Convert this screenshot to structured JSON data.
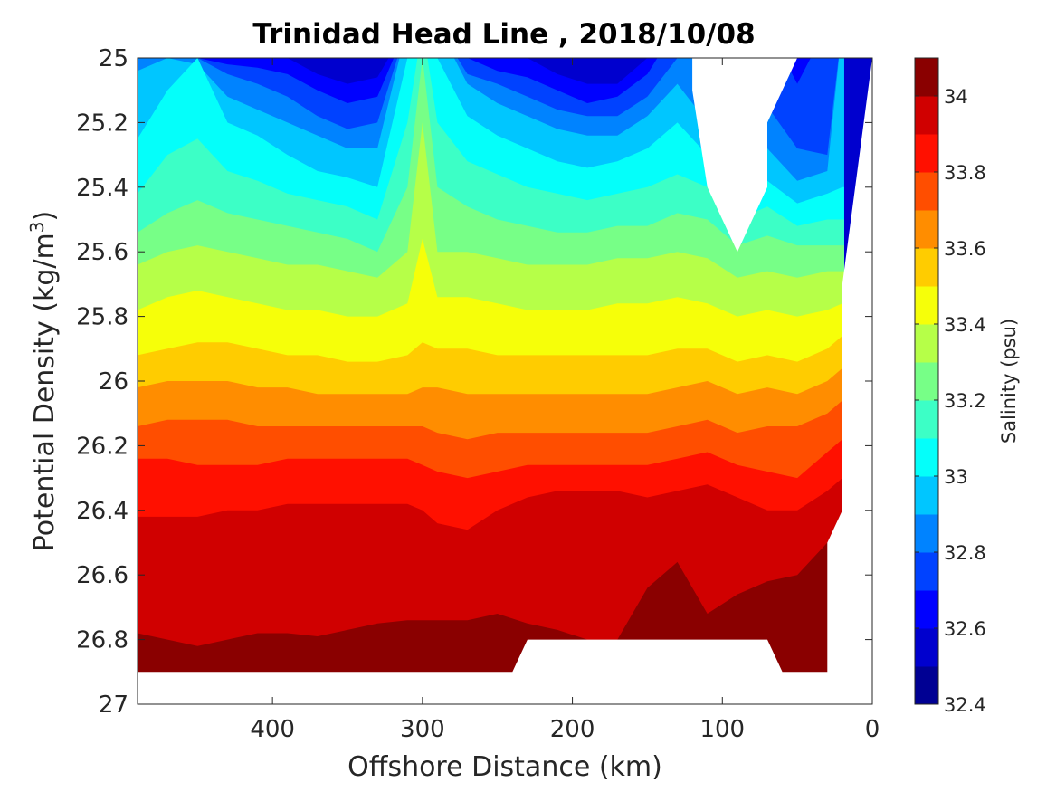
{
  "chart_data": {
    "type": "heatmap",
    "subtype": "filled-contour",
    "title": "Trinidad Head Line , 2018/10/08",
    "xlabel": "Offshore Distance (km)",
    "ylabel_prefix": "Potential Density (kg/m",
    "ylabel_superscript": "3",
    "ylabel_suffix": ")",
    "xlim": [
      490,
      0
    ],
    "x_reversed": true,
    "ylim": [
      25,
      27
    ],
    "y_reversed": true,
    "x_ticks": [
      400,
      300,
      200,
      100,
      0
    ],
    "x_tick_labels": [
      "400",
      "300",
      "200",
      "100",
      "0"
    ],
    "y_ticks": [
      25,
      25.2,
      25.4,
      25.6,
      25.8,
      26,
      26.2,
      26.4,
      26.6,
      26.8,
      27
    ],
    "y_tick_labels": [
      "25",
      "25.2",
      "25.4",
      "25.6",
      "25.8",
      "26",
      "26.2",
      "26.4",
      "26.6",
      "26.8",
      "27"
    ],
    "colorbar": {
      "label": "Salinity (psu)",
      "min": 32.4,
      "max": 34.1,
      "ticks": [
        32.4,
        32.6,
        32.8,
        33,
        33.2,
        33.4,
        33.6,
        33.8,
        34
      ],
      "tick_labels": [
        "32.4",
        "32.6",
        "32.8",
        "33",
        "33.2",
        "33.4",
        "33.6",
        "33.8",
        "34"
      ],
      "levels": [
        32.4,
        32.5,
        32.6,
        32.7,
        32.8,
        32.9,
        33.0,
        33.1,
        33.2,
        33.3,
        33.4,
        33.5,
        33.6,
        33.7,
        33.8,
        33.9,
        34.0,
        34.1
      ],
      "colors": [
        "#000093",
        "#0000CE",
        "#0001FF",
        "#0042FF",
        "#0083FF",
        "#00C6FF",
        "#04FFFA",
        "#3CFFC6",
        "#77FF87",
        "#B6FF48",
        "#F6FF09",
        "#FFCC00",
        "#FF8D00",
        "#FF4E00",
        "#FF1000",
        "#D00000",
        "#8A0000"
      ]
    },
    "contours": {
      "level_values": [
        32.6,
        32.7,
        32.8,
        32.9,
        33.0,
        33.1,
        33.2,
        33.3,
        33.4,
        33.5,
        33.6,
        33.7,
        33.8,
        33.9,
        34.0
      ],
      "x": [
        490,
        470,
        450,
        430,
        410,
        390,
        370,
        350,
        330,
        310,
        300,
        290,
        270,
        250,
        230,
        210,
        190,
        170,
        150,
        130,
        110,
        90,
        70,
        50,
        30,
        20
      ],
      "density_at_level": [
        [
          25.0,
          25.0,
          25.0,
          25.0,
          25.0,
          25.0,
          25.05,
          25.08,
          25.06,
          24.9,
          24.9,
          24.9,
          25.0,
          25.0,
          25.0,
          25.05,
          25.08,
          25.08,
          25.0,
          24.9,
          24.9,
          24.9,
          24.9,
          25.0,
          24.9,
          24.9
        ],
        [
          25.0,
          25.0,
          25.0,
          25.02,
          25.03,
          25.05,
          25.1,
          25.14,
          25.12,
          24.9,
          24.9,
          24.9,
          25.0,
          25.04,
          25.06,
          25.1,
          25.14,
          25.12,
          25.05,
          24.9,
          24.9,
          24.9,
          24.9,
          25.08,
          24.9,
          24.9
        ],
        [
          25.0,
          25.0,
          25.0,
          25.05,
          25.08,
          25.12,
          25.18,
          25.22,
          25.2,
          24.9,
          24.9,
          24.9,
          25.05,
          25.08,
          25.12,
          25.16,
          25.18,
          25.18,
          25.12,
          25.0,
          24.9,
          24.9,
          25.15,
          25.28,
          25.3,
          24.9
        ],
        [
          25.04,
          25.0,
          25.02,
          25.12,
          25.16,
          25.2,
          25.24,
          25.28,
          25.28,
          24.9,
          24.9,
          24.9,
          25.08,
          25.14,
          25.18,
          25.22,
          25.24,
          25.24,
          25.18,
          25.08,
          25.2,
          25.4,
          25.28,
          25.38,
          25.35,
          24.9
        ],
        [
          25.25,
          25.1,
          25.0,
          25.2,
          25.24,
          25.3,
          25.35,
          25.37,
          25.4,
          25.0,
          24.9,
          25.0,
          25.18,
          25.24,
          25.28,
          25.32,
          25.34,
          25.32,
          25.28,
          25.2,
          25.3,
          25.42,
          25.38,
          25.45,
          25.42,
          25.4
        ],
        [
          25.42,
          25.3,
          25.25,
          25.35,
          25.38,
          25.42,
          25.44,
          25.46,
          25.5,
          25.2,
          24.9,
          25.2,
          25.32,
          25.36,
          25.4,
          25.42,
          25.44,
          25.42,
          25.4,
          25.36,
          25.4,
          25.5,
          25.46,
          25.52,
          25.5,
          25.5
        ],
        [
          25.54,
          25.48,
          25.44,
          25.48,
          25.5,
          25.52,
          25.54,
          25.56,
          25.6,
          25.4,
          25.0,
          25.4,
          25.46,
          25.5,
          25.52,
          25.54,
          25.54,
          25.52,
          25.52,
          25.48,
          25.5,
          25.58,
          25.55,
          25.58,
          25.58,
          25.58
        ],
        [
          25.64,
          25.6,
          25.58,
          25.6,
          25.62,
          25.64,
          25.64,
          25.66,
          25.68,
          25.6,
          25.2,
          25.6,
          25.6,
          25.62,
          25.64,
          25.64,
          25.64,
          25.62,
          25.62,
          25.6,
          25.62,
          25.68,
          25.66,
          25.68,
          25.66,
          25.66
        ],
        [
          25.78,
          25.74,
          25.72,
          25.74,
          25.76,
          25.78,
          25.78,
          25.8,
          25.8,
          25.76,
          25.56,
          25.74,
          25.74,
          25.76,
          25.78,
          25.78,
          25.78,
          25.76,
          25.76,
          25.74,
          25.76,
          25.8,
          25.78,
          25.8,
          25.78,
          25.76
        ],
        [
          25.92,
          25.9,
          25.88,
          25.88,
          25.9,
          25.92,
          25.92,
          25.94,
          25.94,
          25.92,
          25.88,
          25.9,
          25.9,
          25.92,
          25.92,
          25.92,
          25.92,
          25.92,
          25.92,
          25.9,
          25.9,
          25.94,
          25.92,
          25.94,
          25.9,
          25.86
        ],
        [
          26.02,
          26.0,
          26.0,
          26.0,
          26.02,
          26.02,
          26.04,
          26.04,
          26.04,
          26.04,
          26.02,
          26.02,
          26.04,
          26.04,
          26.04,
          26.04,
          26.04,
          26.04,
          26.04,
          26.02,
          26.0,
          26.04,
          26.02,
          26.04,
          26.0,
          25.96
        ],
        [
          26.14,
          26.12,
          26.12,
          26.12,
          26.14,
          26.14,
          26.14,
          26.14,
          26.14,
          26.14,
          26.14,
          26.16,
          26.18,
          26.16,
          26.16,
          26.16,
          26.16,
          26.16,
          26.16,
          26.14,
          26.12,
          26.16,
          26.14,
          26.14,
          26.1,
          26.06
        ],
        [
          26.24,
          26.24,
          26.26,
          26.26,
          26.26,
          26.24,
          26.24,
          26.24,
          26.24,
          26.24,
          26.26,
          26.28,
          26.3,
          26.28,
          26.26,
          26.26,
          26.26,
          26.26,
          26.26,
          26.24,
          26.22,
          26.26,
          26.28,
          26.3,
          26.22,
          26.18
        ],
        [
          26.42,
          26.42,
          26.42,
          26.4,
          26.4,
          26.38,
          26.38,
          26.38,
          26.38,
          26.38,
          26.4,
          26.44,
          26.46,
          26.4,
          26.36,
          26.34,
          26.34,
          26.34,
          26.36,
          26.34,
          26.32,
          26.36,
          26.4,
          26.4,
          26.34,
          26.3
        ],
        [
          26.78,
          26.8,
          26.82,
          26.8,
          26.78,
          26.78,
          26.79,
          26.77,
          26.75,
          26.74,
          26.74,
          26.74,
          26.74,
          26.72,
          26.75,
          26.77,
          26.8,
          26.8,
          26.64,
          26.56,
          26.72,
          26.66,
          26.62,
          26.6,
          26.5,
          26.4
        ]
      ]
    },
    "no_data_regions": [
      {
        "name": "upper-gap",
        "x": [
          120,
          120,
          110,
          90,
          70,
          70,
          50
        ],
        "y": [
          25.0,
          25.1,
          25.4,
          25.6,
          25.4,
          25.2,
          25.0
        ]
      },
      {
        "name": "bottom-gap",
        "x": [
          230,
          70,
          60,
          45,
          30,
          30,
          20,
          20,
          0,
          0,
          490,
          490,
          240
        ],
        "y": [
          26.8,
          26.8,
          26.9,
          26.9,
          26.9,
          26.5,
          26.4,
          25.7,
          25.0,
          27.0,
          27.0,
          26.9,
          26.9
        ]
      }
    ]
  }
}
